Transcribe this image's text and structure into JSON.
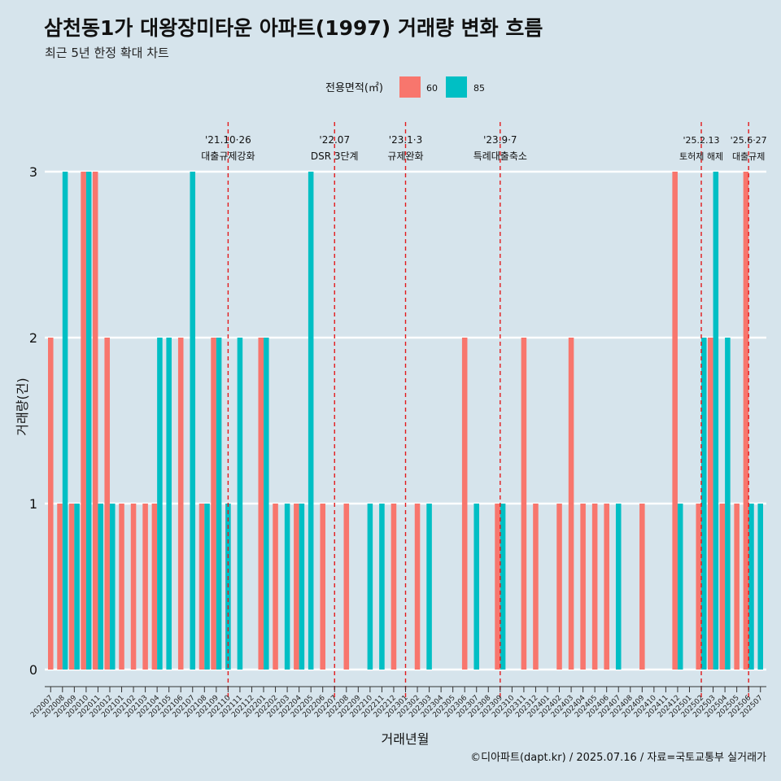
{
  "title": "삼천동1가 대왕장미타운 아파트(1997) 거래량 변화 흐름",
  "subtitle": "최근 5년 한정 확대 차트",
  "caption": "©디아파트(dapt.kr) / 2025.07.16 / 자료=국토교통부 실거래가",
  "colors": {
    "background": "#d6e4ec",
    "s60": "#f8766d",
    "s85": "#00bfc4",
    "vline": "#e31a1c",
    "grid": "#ffffff"
  },
  "chart_data": {
    "type": "bar",
    "xlabel": "거래년월",
    "ylabel": "거래량(건)",
    "ylim": [
      0,
      3
    ],
    "yticks": [
      0,
      1,
      2,
      3
    ],
    "legend": {
      "title": "전용면적(㎡)",
      "position": "top"
    },
    "categories": [
      "202007",
      "202008",
      "202009",
      "202010",
      "202011",
      "202012",
      "202101",
      "202102",
      "202103",
      "202104",
      "202105",
      "202106",
      "202107",
      "202108",
      "202109",
      "202110",
      "202111",
      "202112",
      "202201",
      "202202",
      "202203",
      "202204",
      "202205",
      "202206",
      "202207",
      "202208",
      "202209",
      "202210",
      "202211",
      "202212",
      "202301",
      "202302",
      "202303",
      "202304",
      "202305",
      "202306",
      "202307",
      "202308",
      "202309",
      "202310",
      "202311",
      "202312",
      "202401",
      "202402",
      "202403",
      "202404",
      "202405",
      "202406",
      "202407",
      "202408",
      "202409",
      "202410",
      "202411",
      "202412",
      "202501",
      "202502",
      "202503",
      "202504",
      "202505",
      "202506",
      "202507"
    ],
    "series": [
      {
        "name": "60",
        "values": [
          2,
          1,
          1,
          3,
          3,
          2,
          1,
          1,
          1,
          1,
          0,
          2,
          0,
          1,
          2,
          0,
          0,
          0,
          2,
          1,
          0,
          1,
          0,
          1,
          0,
          1,
          0,
          0,
          0,
          1,
          0,
          1,
          0,
          0,
          0,
          2,
          0,
          0,
          1,
          0,
          2,
          1,
          0,
          1,
          2,
          1,
          1,
          1,
          0,
          0,
          1,
          0,
          0,
          3,
          0,
          1,
          2,
          1,
          1,
          3,
          0
        ]
      },
      {
        "name": "85",
        "values": [
          0,
          3,
          1,
          3,
          1,
          1,
          0,
          0,
          0,
          2,
          2,
          0,
          3,
          1,
          2,
          1,
          2,
          0,
          2,
          0,
          1,
          1,
          3,
          0,
          0,
          0,
          0,
          1,
          1,
          0,
          0,
          0,
          1,
          0,
          0,
          0,
          1,
          0,
          1,
          0,
          0,
          0,
          0,
          0,
          0,
          0,
          0,
          0,
          1,
          0,
          0,
          0,
          0,
          1,
          0,
          2,
          3,
          2,
          0,
          1,
          1
        ]
      }
    ],
    "annotations": [
      {
        "x": "202110",
        "date": "'21.10·26",
        "label": "대출규제강화"
      },
      {
        "x": "202207",
        "date": "'22.07",
        "label": "DSR 3단계"
      },
      {
        "x": "202301",
        "date": "'23.1·3",
        "label": "규제완화"
      },
      {
        "x": "202309",
        "date": "'23.9·7",
        "label": "특례대출축소"
      },
      {
        "x": "202502",
        "date": "'25.2.13",
        "label": "토허제 해제"
      },
      {
        "x": "202506",
        "date": "'25.6·27",
        "label": "대출규제"
      }
    ]
  }
}
